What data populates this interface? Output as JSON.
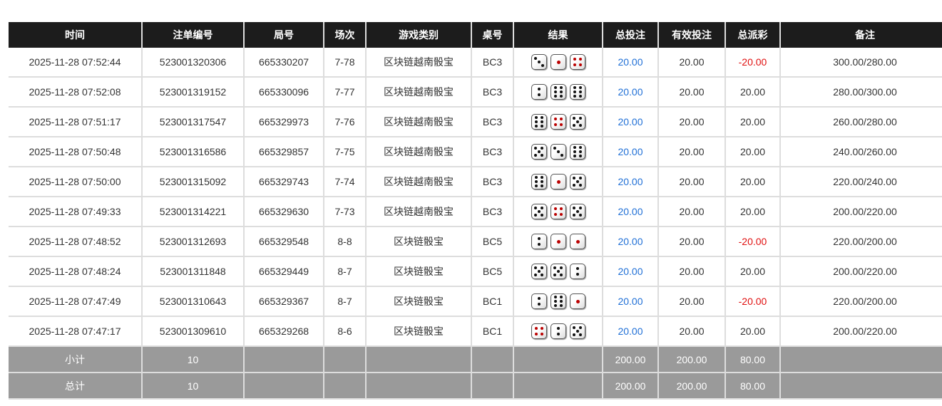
{
  "headers": [
    "时间",
    "注单编号",
    "局号",
    "场次",
    "游戏类别",
    "桌号",
    "结果",
    "总投注",
    "有效投注",
    "总派彩",
    "备注"
  ],
  "rows": [
    {
      "time": "2025-11-28 07:52:44",
      "order": "523001320306",
      "round": "665330207",
      "session": "7-78",
      "game": "区块链越南骰宝",
      "table": "BC3",
      "dice": [
        3,
        1,
        4
      ],
      "bet": "20.00",
      "valid": "20.00",
      "payout": "-20.00",
      "payout_negative": true,
      "note": "300.00/280.00"
    },
    {
      "time": "2025-11-28 07:52:08",
      "order": "523001319152",
      "round": "665330096",
      "session": "7-77",
      "game": "区块链越南骰宝",
      "table": "BC3",
      "dice": [
        2,
        6,
        6
      ],
      "bet": "20.00",
      "valid": "20.00",
      "payout": "20.00",
      "payout_negative": false,
      "note": "280.00/300.00"
    },
    {
      "time": "2025-11-28 07:51:17",
      "order": "523001317547",
      "round": "665329973",
      "session": "7-76",
      "game": "区块链越南骰宝",
      "table": "BC3",
      "dice": [
        6,
        4,
        5
      ],
      "bet": "20.00",
      "valid": "20.00",
      "payout": "20.00",
      "payout_negative": false,
      "note": "260.00/280.00"
    },
    {
      "time": "2025-11-28 07:50:48",
      "order": "523001316586",
      "round": "665329857",
      "session": "7-75",
      "game": "区块链越南骰宝",
      "table": "BC3",
      "dice": [
        5,
        3,
        6
      ],
      "bet": "20.00",
      "valid": "20.00",
      "payout": "20.00",
      "payout_negative": false,
      "note": "240.00/260.00"
    },
    {
      "time": "2025-11-28 07:50:00",
      "order": "523001315092",
      "round": "665329743",
      "session": "7-74",
      "game": "区块链越南骰宝",
      "table": "BC3",
      "dice": [
        6,
        1,
        5
      ],
      "bet": "20.00",
      "valid": "20.00",
      "payout": "20.00",
      "payout_negative": false,
      "note": "220.00/240.00"
    },
    {
      "time": "2025-11-28 07:49:33",
      "order": "523001314221",
      "round": "665329630",
      "session": "7-73",
      "game": "区块链越南骰宝",
      "table": "BC3",
      "dice": [
        5,
        4,
        5
      ],
      "bet": "20.00",
      "valid": "20.00",
      "payout": "20.00",
      "payout_negative": false,
      "note": "200.00/220.00"
    },
    {
      "time": "2025-11-28 07:48:52",
      "order": "523001312693",
      "round": "665329548",
      "session": "8-8",
      "game": "区块链骰宝",
      "table": "BC5",
      "dice": [
        2,
        1,
        1
      ],
      "bet": "20.00",
      "valid": "20.00",
      "payout": "-20.00",
      "payout_negative": true,
      "note": "220.00/200.00"
    },
    {
      "time": "2025-11-28 07:48:24",
      "order": "523001311848",
      "round": "665329449",
      "session": "8-7",
      "game": "区块链骰宝",
      "table": "BC5",
      "dice": [
        5,
        5,
        2
      ],
      "bet": "20.00",
      "valid": "20.00",
      "payout": "20.00",
      "payout_negative": false,
      "note": "200.00/220.00"
    },
    {
      "time": "2025-11-28 07:47:49",
      "order": "523001310643",
      "round": "665329367",
      "session": "8-7",
      "game": "区块链骰宝",
      "table": "BC1",
      "dice": [
        2,
        6,
        1
      ],
      "bet": "20.00",
      "valid": "20.00",
      "payout": "-20.00",
      "payout_negative": true,
      "note": "220.00/200.00"
    },
    {
      "time": "2025-11-28 07:47:17",
      "order": "523001309610",
      "round": "665329268",
      "session": "8-6",
      "game": "区块链骰宝",
      "table": "BC1",
      "dice": [
        4,
        2,
        5
      ],
      "bet": "20.00",
      "valid": "20.00",
      "payout": "20.00",
      "payout_negative": false,
      "note": "200.00/220.00"
    }
  ],
  "subtotal": {
    "label": "小计",
    "count": "10",
    "bet": "200.00",
    "valid": "200.00",
    "payout": "80.00"
  },
  "total": {
    "label": "总计",
    "count": "10",
    "bet": "200.00",
    "valid": "200.00",
    "payout": "80.00"
  },
  "colors": {
    "header_bg": "#1c1c1c",
    "bet": "#1f6fd6",
    "negative": "#e01010",
    "summary_bg": "#9a9a9a"
  }
}
